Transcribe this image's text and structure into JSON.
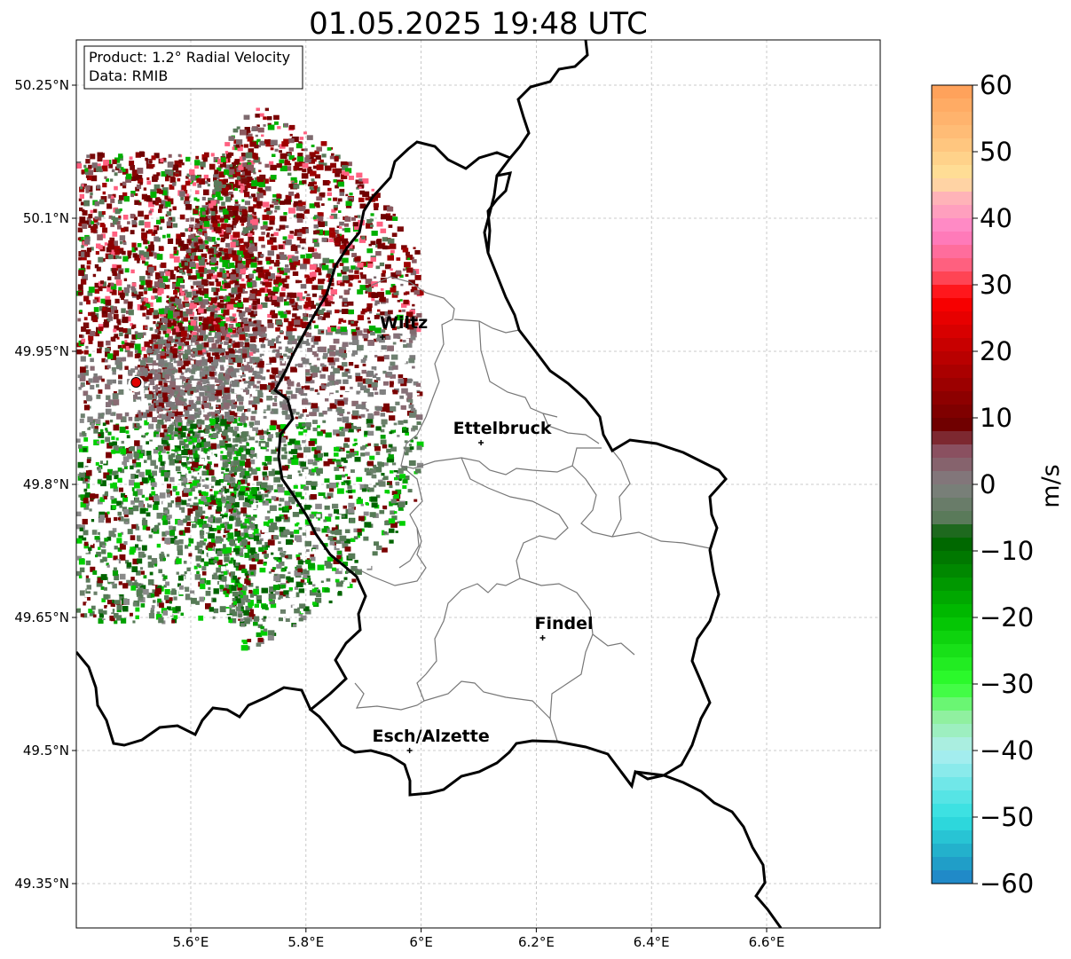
{
  "title": "01.05.2025 19:48 UTC",
  "info_box": {
    "product": "Product: 1.2° Radial Velocity",
    "data": "Data: RMIB"
  },
  "map": {
    "lon_range": [
      5.4,
      6.8
    ],
    "lat_range": [
      49.3,
      50.3
    ],
    "lon_ticks": [
      {
        "value": 5.6,
        "label": "5.6°E"
      },
      {
        "value": 5.8,
        "label": "5.8°E"
      },
      {
        "value": 6.0,
        "label": "6°E"
      },
      {
        "value": 6.2,
        "label": "6.2°E"
      },
      {
        "value": 6.4,
        "label": "6.4°E"
      },
      {
        "value": 6.6,
        "label": "6.6°E"
      }
    ],
    "lat_ticks": [
      {
        "value": 50.25,
        "label": "50.25°N"
      },
      {
        "value": 50.1,
        "label": "50.1°N"
      },
      {
        "value": 49.95,
        "label": "49.95°N"
      },
      {
        "value": 49.8,
        "label": "49.8°N"
      },
      {
        "value": 49.65,
        "label": "49.65°N"
      },
      {
        "value": 49.5,
        "label": "49.5°N"
      },
      {
        "value": 49.35,
        "label": "49.35°N"
      }
    ],
    "grid": true,
    "radar_site": {
      "lon": 5.505,
      "lat": 49.915,
      "color": "#e00000"
    },
    "cities": [
      {
        "name": "Wiltz",
        "lon": 5.933,
        "lat": 49.966
      },
      {
        "name": "Ettelbruck",
        "lon": 6.104,
        "lat": 49.847
      },
      {
        "name": "Findel",
        "lon": 6.211,
        "lat": 49.627
      },
      {
        "name": "Esch/Alzette",
        "lon": 5.98,
        "lat": 49.5
      }
    ]
  },
  "colorbar": {
    "label": "m/s",
    "min": -60,
    "max": 60,
    "ticks": [
      {
        "value": 60,
        "label": "60"
      },
      {
        "value": 50,
        "label": "50"
      },
      {
        "value": 40,
        "label": "40"
      },
      {
        "value": 30,
        "label": "30"
      },
      {
        "value": 20,
        "label": "20"
      },
      {
        "value": 10,
        "label": "10"
      },
      {
        "value": 0,
        "label": "0"
      },
      {
        "value": -10,
        "label": "−10"
      },
      {
        "value": -20,
        "label": "−20"
      },
      {
        "value": -30,
        "label": "−30"
      },
      {
        "value": -40,
        "label": "−40"
      },
      {
        "value": -50,
        "label": "−50"
      },
      {
        "value": -60,
        "label": "−60"
      }
    ],
    "stops": [
      {
        "value": 60,
        "color": "#ff9e57"
      },
      {
        "value": 52,
        "color": "#ffc07a"
      },
      {
        "value": 46,
        "color": "#ffe39a"
      },
      {
        "value": 43,
        "color": "#ffb3b8"
      },
      {
        "value": 38,
        "color": "#ff80c8"
      },
      {
        "value": 32,
        "color": "#ff5a70"
      },
      {
        "value": 28,
        "color": "#ff0000"
      },
      {
        "value": 20,
        "color": "#c00000"
      },
      {
        "value": 9,
        "color": "#700000"
      },
      {
        "value": 5,
        "color": "#8a5060"
      },
      {
        "value": 0,
        "color": "#808080"
      },
      {
        "value": -5,
        "color": "#5a7a5a"
      },
      {
        "value": -8,
        "color": "#006000"
      },
      {
        "value": -20,
        "color": "#00c000"
      },
      {
        "value": -30,
        "color": "#30ff30"
      },
      {
        "value": -35,
        "color": "#90f0a0"
      },
      {
        "value": -40,
        "color": "#b0eef0"
      },
      {
        "value": -50,
        "color": "#30e0e0"
      },
      {
        "value": -56,
        "color": "#20a8c8"
      },
      {
        "value": -60,
        "color": "#2080c8"
      }
    ]
  }
}
